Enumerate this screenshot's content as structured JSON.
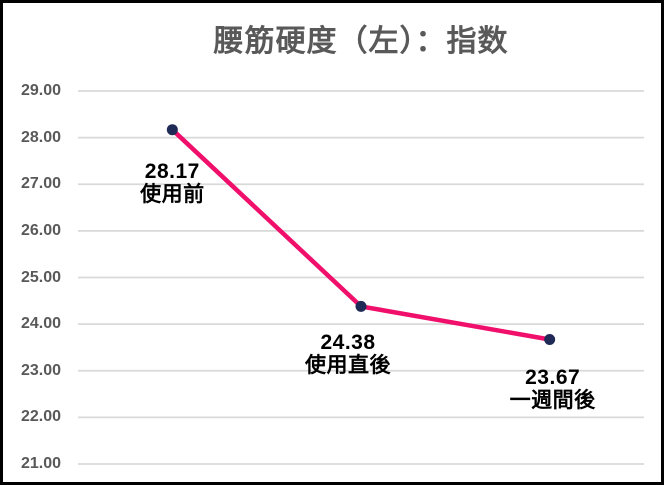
{
  "title": "腰筋硬度（左）：指数",
  "colors": {
    "border": "#000000",
    "background": "#ffffff",
    "title_text": "#595959",
    "axis_text": "#595959",
    "label_text": "#000000",
    "gridline": "#d9d9d9",
    "line": "#f00f6b",
    "marker": "#1f2a56"
  },
  "chart_data": {
    "type": "line",
    "title": "腰筋硬度（左）：指数",
    "categories": [
      "使用前",
      "使用直後",
      "一週間後"
    ],
    "values": [
      28.17,
      24.38,
      23.67
    ],
    "value_labels": [
      "28.17",
      "24.38",
      "23.67"
    ],
    "series": [
      {
        "name": "指数",
        "values": [
          28.17,
          24.38,
          23.67
        ]
      }
    ],
    "xlabel": "",
    "ylabel": "",
    "ylim": [
      21.0,
      29.0
    ],
    "ytick_step": 1.0,
    "ytick_labels": [
      "29.00",
      "28.00",
      "27.00",
      "26.00",
      "25.00",
      "24.00",
      "23.00",
      "22.00",
      "21.00"
    ],
    "grid": true,
    "legend_position": "none",
    "data_labels_visible": true
  }
}
